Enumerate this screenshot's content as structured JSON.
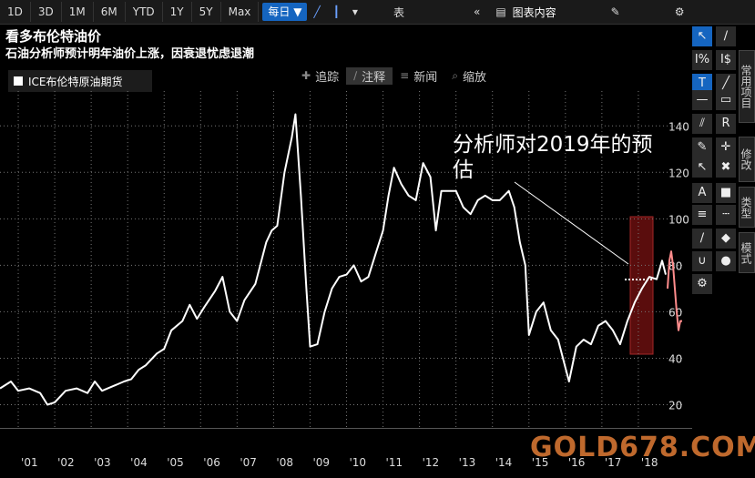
{
  "toolbar": {
    "ranges": [
      "1D",
      "3D",
      "1M",
      "6M",
      "YTD",
      "1Y",
      "5Y",
      "Max"
    ],
    "frequency": "每日 ▼",
    "table_label": "表",
    "chart_contents_label": "图表内容"
  },
  "midtools": {
    "track": "追踪",
    "annotate": "注释",
    "news": "新闻",
    "zoom": "缩放"
  },
  "side_tabs": [
    "常用项目",
    "修改",
    "类型",
    "模式"
  ],
  "watermark": "GOLD678.COM",
  "colors": {
    "series": "#ffffff",
    "forecast_box": "#7a1414",
    "forecast_series": "#ff8c8c",
    "accent": "#1565c0"
  },
  "chart_data": {
    "type": "line",
    "title": "看多布伦特油价",
    "subtitle": "石油分析师预计明年油价上涨，因衰退忧虑退潮",
    "annotation": "分析师对2019年的预估",
    "legend": [
      {
        "name": "ICE布伦特原油期货"
      }
    ],
    "legend_placement": "top-left",
    "xlabel": "",
    "ylabel": "",
    "x_ticks": [
      "'01",
      "'02",
      "'03",
      "'04",
      "'05",
      "'06",
      "'07",
      "'08",
      "'09",
      "'10",
      "'11",
      "'12",
      "'13",
      "'14",
      "'15",
      "'16",
      "'17",
      "'18"
    ],
    "y_ticks": [
      20,
      40,
      60,
      80,
      100,
      120,
      140
    ],
    "xlim": [
      2000.5,
      2019.35
    ],
    "ylim": [
      10,
      155
    ],
    "grid": true,
    "series": [
      {
        "name": "ICE布伦特原油期货",
        "x": [
          2000.5,
          2000.8,
          2001.0,
          2001.3,
          2001.6,
          2001.8,
          2002.0,
          2002.3,
          2002.6,
          2002.9,
          2003.1,
          2003.3,
          2003.6,
          2003.9,
          2004.1,
          2004.3,
          2004.5,
          2004.8,
          2005.0,
          2005.2,
          2005.5,
          2005.7,
          2005.9,
          2006.1,
          2006.4,
          2006.6,
          2006.8,
          2007.0,
          2007.2,
          2007.5,
          2007.8,
          2007.95,
          2008.1,
          2008.3,
          2008.5,
          2008.6,
          2008.75,
          2008.9,
          2009.0,
          2009.2,
          2009.4,
          2009.6,
          2009.8,
          2010.0,
          2010.2,
          2010.4,
          2010.6,
          2010.8,
          2011.0,
          2011.15,
          2011.3,
          2011.5,
          2011.7,
          2011.9,
          2012.1,
          2012.3,
          2012.45,
          2012.6,
          2012.8,
          2013.0,
          2013.2,
          2013.4,
          2013.6,
          2013.8,
          2014.0,
          2014.2,
          2014.45,
          2014.6,
          2014.75,
          2014.9,
          2015.0,
          2015.2,
          2015.4,
          2015.6,
          2015.8,
          2016.0,
          2016.1,
          2016.3,
          2016.5,
          2016.7,
          2016.9,
          2017.1,
          2017.3,
          2017.5,
          2017.7,
          2017.9,
          2018.1,
          2018.3,
          2018.5,
          2018.65,
          2018.75
        ],
        "y": [
          27,
          30,
          26,
          27,
          25,
          20,
          21,
          26,
          27,
          25,
          30,
          26,
          28,
          30,
          31,
          35,
          37,
          42,
          44,
          52,
          56,
          63,
          57,
          62,
          69,
          75,
          60,
          56,
          65,
          72,
          90,
          95,
          97,
          120,
          135,
          145,
          110,
          70,
          45,
          46,
          60,
          70,
          75,
          76,
          80,
          73,
          75,
          85,
          95,
          110,
          122,
          115,
          110,
          108,
          124,
          118,
          95,
          112,
          112,
          112,
          105,
          102,
          108,
          110,
          108,
          108,
          112,
          105,
          90,
          80,
          50,
          60,
          64,
          52,
          48,
          36,
          30,
          45,
          48,
          46,
          54,
          56,
          52,
          46,
          56,
          64,
          70,
          75,
          74,
          82,
          76
        ]
      },
      {
        "name": "分析师对2019年的预估",
        "x": [
          2018.8,
          2018.85,
          2018.9,
          2018.95,
          2019.0,
          2019.05,
          2019.1,
          2019.15,
          2019.2
        ],
        "y": [
          70,
          82,
          86,
          80,
          70,
          60,
          52,
          56,
          56
        ]
      }
    ]
  }
}
